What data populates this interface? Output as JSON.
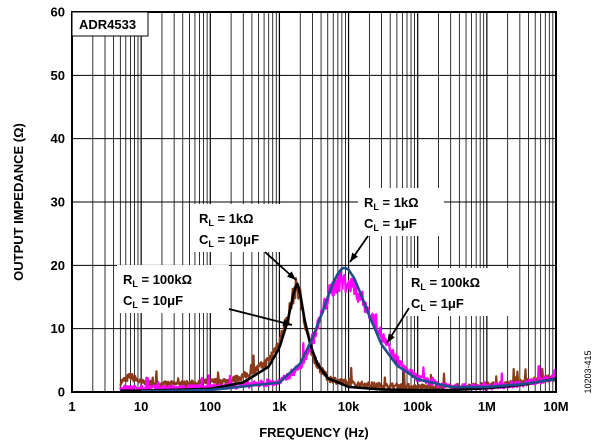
{
  "chart_data": {
    "type": "line",
    "title": "ADR4533",
    "xlabel": "FREQUENCY (Hz)",
    "ylabel": "OUTPUT IMPEDANCE (Ω)",
    "xscale": "log",
    "xlim": [
      1,
      10000000
    ],
    "ylim": [
      0,
      60
    ],
    "grid": true,
    "x_ticks": [
      1,
      10,
      100,
      1000,
      10000,
      100000,
      1000000,
      10000000
    ],
    "x_tick_labels": [
      "1",
      "10",
      "100",
      "1k",
      "10k",
      "100k",
      "1M",
      "10M"
    ],
    "y_ticks": [
      0,
      10,
      20,
      30,
      40,
      50,
      60
    ],
    "y_tick_labels": [
      "0",
      "10",
      "20",
      "30",
      "40",
      "50",
      "60"
    ],
    "series": [
      {
        "color": "#8b3a1a",
        "noisy": true,
        "x": [
          5,
          7,
          10,
          20,
          50,
          100,
          200,
          400,
          700,
          1000,
          1300,
          1600,
          1800,
          2000,
          2300,
          2800,
          3500,
          5000,
          10000,
          30000,
          100000,
          300000,
          1000000,
          3000000,
          10000000
        ],
        "y": [
          1.5,
          2.5,
          1.5,
          1.2,
          1.3,
          1.6,
          1.8,
          3.0,
          5.0,
          8.0,
          11.5,
          15.5,
          17.0,
          15.0,
          11.0,
          7.0,
          4.2,
          2.2,
          1.3,
          1.0,
          0.8,
          0.8,
          1.0,
          1.4,
          2.3
        ]
      },
      {
        "color": "#ff00ff",
        "noisy": true,
        "x": [
          5,
          10,
          100,
          1000,
          2000,
          3000,
          4000,
          5000,
          6000,
          7000,
          8000,
          10000,
          12000,
          15000,
          20000,
          30000,
          40000,
          60000,
          100000,
          200000,
          500000,
          1000000,
          3000000,
          10000000
        ],
        "y": [
          0.6,
          0.6,
          0.7,
          1.5,
          4.0,
          8.0,
          12.0,
          15.0,
          16.5,
          17.5,
          17.5,
          17.0,
          16.5,
          15.0,
          12.5,
          9.0,
          6.5,
          4.0,
          2.2,
          1.2,
          0.8,
          0.8,
          1.3,
          2.2
        ]
      },
      {
        "color": "#000000",
        "noisy": false,
        "x": [
          5,
          10,
          100,
          300,
          700,
          1000,
          1300,
          1600,
          1800,
          2000,
          2300,
          2800,
          3500,
          5000,
          10000,
          30000,
          100000,
          300000,
          1000000,
          3000000,
          10000000
        ],
        "y": [
          0.2,
          0.2,
          0.5,
          1.5,
          4.0,
          7.0,
          11.0,
          15.5,
          17.3,
          15.5,
          11.5,
          7.5,
          4.5,
          2.2,
          0.8,
          0.4,
          0.3,
          0.3,
          0.6,
          1.1,
          2.1
        ]
      },
      {
        "color": "#1f4e8c",
        "noisy": false,
        "x": [
          10,
          100,
          1000,
          2000,
          3000,
          4000,
          5000,
          6000,
          7000,
          8000,
          9000,
          10000,
          12000,
          15000,
          20000,
          30000,
          50000,
          100000,
          300000,
          1000000,
          3000000,
          10000000
        ],
        "y": [
          0.1,
          0.3,
          1.5,
          4.5,
          8.5,
          12.0,
          15.0,
          17.2,
          18.7,
          19.5,
          19.6,
          19.3,
          18.0,
          15.5,
          12.0,
          7.5,
          4.2,
          2.0,
          0.8,
          0.8,
          1.2,
          2.0
        ]
      }
    ],
    "annotations": [
      {
        "lines": [
          "R_L = 1kΩ",
          "C_L = 10μF"
        ],
        "parts": [
          [
            "R",
            "L",
            " = 1kΩ"
          ],
          [
            "C",
            "L",
            " = 10μF"
          ]
        ]
      },
      {
        "lines": [
          "R_L = 100kΩ",
          "C_L = 10μF"
        ],
        "parts": [
          [
            "R",
            "L",
            " = 100kΩ"
          ],
          [
            "C",
            "L",
            " = 10μF"
          ]
        ]
      },
      {
        "lines": [
          "R_L = 1kΩ",
          "C_L = 1μF"
        ],
        "parts": [
          [
            "R",
            "L",
            " = 1kΩ"
          ],
          [
            "C",
            "L",
            " = 1μF"
          ]
        ]
      },
      {
        "lines": [
          "R_L = 100kΩ",
          "C_L = 1μF"
        ],
        "parts": [
          [
            "R",
            "L",
            " = 100kΩ"
          ],
          [
            "C",
            "L",
            " = 1μF"
          ]
        ]
      }
    ]
  },
  "figure_id": "10203-415"
}
